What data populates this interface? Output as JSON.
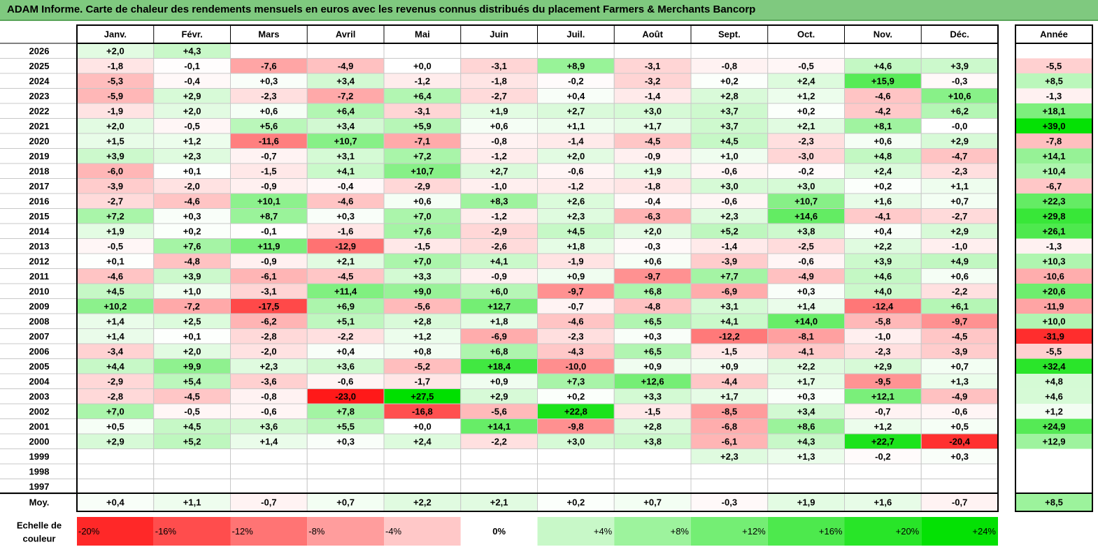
{
  "title": "ADAM Informe. Carte de chaleur des rendements mensuels en euros avec les revenus connus distribués du placement Farmers & Merchants Bancorp",
  "chart_data": {
    "type": "heatmap",
    "columns": [
      "Janv.",
      "Févr.",
      "Mars",
      "Avril",
      "Mai",
      "Juin",
      "Juil.",
      "Août",
      "Sept.",
      "Oct.",
      "Nov.",
      "Déc."
    ],
    "year_header": "Année",
    "rows": [
      {
        "year": "2026",
        "values": [
          2.0,
          4.3,
          null,
          null,
          null,
          null,
          null,
          null,
          null,
          null,
          null,
          null
        ],
        "annual": null
      },
      {
        "year": "2025",
        "values": [
          -1.8,
          -0.1,
          -7.6,
          -4.9,
          0.0,
          -3.1,
          8.9,
          -3.1,
          -0.8,
          -0.5,
          4.6,
          3.9
        ],
        "annual": -5.5
      },
      {
        "year": "2024",
        "values": [
          -5.3,
          -0.4,
          0.3,
          3.4,
          -1.2,
          -1.8,
          -0.2,
          -3.2,
          0.2,
          2.4,
          15.9,
          -0.3
        ],
        "annual": 8.5
      },
      {
        "year": "2023",
        "values": [
          -5.9,
          2.9,
          -2.3,
          -7.2,
          6.4,
          -2.7,
          0.4,
          -1.4,
          2.8,
          1.2,
          -4.6,
          10.6
        ],
        "annual": -1.3
      },
      {
        "year": "2022",
        "values": [
          -1.9,
          2.0,
          0.6,
          6.4,
          -3.1,
          1.9,
          2.7,
          3.0,
          3.7,
          0.2,
          -4.2,
          6.2
        ],
        "annual": 18.1
      },
      {
        "year": "2021",
        "values": [
          2.0,
          -0.5,
          5.6,
          3.4,
          5.9,
          0.6,
          1.1,
          1.7,
          3.7,
          2.1,
          8.1,
          -0.0
        ],
        "annual": 39.0
      },
      {
        "year": "2020",
        "values": [
          1.5,
          1.2,
          -11.6,
          10.7,
          -7.1,
          -0.8,
          -1.4,
          -4.5,
          4.5,
          -2.3,
          0.6,
          2.9
        ],
        "annual": -7.8
      },
      {
        "year": "2019",
        "values": [
          3.9,
          2.3,
          -0.7,
          3.1,
          7.2,
          -1.2,
          2.0,
          -0.9,
          1.0,
          -3.0,
          4.8,
          -4.7
        ],
        "annual": 14.1
      },
      {
        "year": "2018",
        "values": [
          -6.0,
          0.1,
          -1.5,
          4.1,
          10.7,
          2.7,
          -0.6,
          1.9,
          -0.6,
          -0.2,
          2.4,
          -2.3
        ],
        "annual": 10.4
      },
      {
        "year": "2017",
        "values": [
          -3.9,
          -2.0,
          -0.9,
          -0.4,
          -2.9,
          -1.0,
          -1.2,
          -1.8,
          3.0,
          3.0,
          0.2,
          1.1
        ],
        "annual": -6.7
      },
      {
        "year": "2016",
        "values": [
          -2.7,
          -4.6,
          10.1,
          -4.6,
          0.6,
          8.3,
          2.6,
          -0.4,
          -0.6,
          10.7,
          1.6,
          0.7
        ],
        "annual": 22.3
      },
      {
        "year": "2015",
        "values": [
          7.2,
          0.3,
          8.7,
          0.3,
          7.0,
          -1.2,
          2.3,
          -6.3,
          2.3,
          14.6,
          -4.1,
          -2.7
        ],
        "annual": 29.8
      },
      {
        "year": "2014",
        "values": [
          1.9,
          0.2,
          -0.1,
          -1.6,
          7.6,
          -2.9,
          4.5,
          2.0,
          5.2,
          3.8,
          0.4,
          2.9
        ],
        "annual": 26.1
      },
      {
        "year": "2013",
        "values": [
          -0.5,
          7.6,
          11.9,
          -12.9,
          -1.5,
          -2.6,
          1.8,
          -0.3,
          -1.4,
          -2.5,
          2.2,
          -1.0
        ],
        "annual": -1.3
      },
      {
        "year": "2012",
        "values": [
          0.1,
          -4.8,
          -0.9,
          2.1,
          7.0,
          4.1,
          -1.9,
          0.6,
          -3.9,
          -0.6,
          3.9,
          4.9
        ],
        "annual": 10.3
      },
      {
        "year": "2011",
        "values": [
          -4.6,
          3.9,
          -6.1,
          -4.5,
          3.3,
          -0.9,
          0.9,
          -9.7,
          7.7,
          -4.9,
          4.6,
          0.6
        ],
        "annual": -10.6
      },
      {
        "year": "2010",
        "values": [
          4.5,
          1.0,
          -3.1,
          11.4,
          9.0,
          6.0,
          -9.7,
          6.8,
          -6.9,
          0.3,
          4.0,
          -2.2
        ],
        "annual": 20.6
      },
      {
        "year": "2009",
        "values": [
          10.2,
          -7.2,
          -17.5,
          6.9,
          -5.6,
          12.7,
          -0.7,
          -4.8,
          3.1,
          1.4,
          -12.4,
          6.1
        ],
        "annual": -11.9
      },
      {
        "year": "2008",
        "values": [
          1.4,
          2.5,
          -6.2,
          5.1,
          2.8,
          1.8,
          -4.6,
          6.5,
          4.1,
          14.0,
          -5.8,
          -9.7
        ],
        "annual": 10.0
      },
      {
        "year": "2007",
        "values": [
          1.4,
          0.1,
          -2.8,
          -2.2,
          1.2,
          -6.9,
          -2.3,
          0.3,
          -12.2,
          -8.1,
          -1.0,
          -4.5
        ],
        "annual": -31.9
      },
      {
        "year": "2006",
        "values": [
          -3.4,
          2.0,
          -2.0,
          0.4,
          0.8,
          6.8,
          -4.3,
          6.5,
          -1.5,
          -4.1,
          -2.3,
          -3.9
        ],
        "annual": -5.5
      },
      {
        "year": "2005",
        "values": [
          4.4,
          9.9,
          2.3,
          3.6,
          -5.2,
          18.4,
          -10.0,
          0.9,
          0.9,
          2.2,
          2.9,
          0.7
        ],
        "annual": 32.4
      },
      {
        "year": "2004",
        "values": [
          -2.9,
          5.4,
          -3.6,
          -0.6,
          -1.7,
          0.9,
          7.3,
          12.6,
          -4.4,
          1.7,
          -9.5,
          1.3
        ],
        "annual": 4.8
      },
      {
        "year": "2003",
        "values": [
          -2.8,
          -4.5,
          -0.8,
          -23.0,
          27.5,
          2.9,
          0.2,
          3.3,
          1.7,
          0.3,
          12.1,
          -4.9
        ],
        "annual": 4.6
      },
      {
        "year": "2002",
        "values": [
          7.0,
          -0.5,
          -0.6,
          7.8,
          -16.8,
          -5.6,
          22.8,
          -1.5,
          -8.5,
          3.4,
          -0.7,
          -0.6
        ],
        "annual": 1.2
      },
      {
        "year": "2001",
        "values": [
          0.5,
          4.5,
          3.6,
          5.5,
          0.0,
          14.1,
          -9.8,
          2.8,
          -6.8,
          8.6,
          1.2,
          0.5
        ],
        "annual": 24.9
      },
      {
        "year": "2000",
        "values": [
          2.9,
          5.2,
          1.4,
          0.3,
          2.4,
          -2.2,
          3.0,
          3.8,
          -6.1,
          4.3,
          22.7,
          -20.4
        ],
        "annual": 12.9
      },
      {
        "year": "1999",
        "values": [
          null,
          null,
          null,
          null,
          null,
          null,
          null,
          null,
          2.3,
          1.3,
          -0.2,
          0.3
        ],
        "annual": null
      },
      {
        "year": "1998",
        "values": [
          null,
          null,
          null,
          null,
          null,
          null,
          null,
          null,
          null,
          null,
          null,
          null
        ],
        "annual": null
      },
      {
        "year": "1997",
        "values": [
          null,
          null,
          null,
          null,
          null,
          null,
          null,
          null,
          null,
          null,
          null,
          null
        ],
        "annual": null
      }
    ],
    "average": {
      "label": "Moy.",
      "values": [
        0.4,
        1.1,
        -0.7,
        0.7,
        2.2,
        2.1,
        0.2,
        0.7,
        -0.3,
        1.9,
        1.6,
        -0.7
      ],
      "annual": 8.5
    },
    "scale": {
      "label_line1": "Echelle de",
      "label_line2": "couleur",
      "steps": [
        {
          "label": "-20%",
          "value": -20
        },
        {
          "label": "-16%",
          "value": -16
        },
        {
          "label": "-12%",
          "value": -12
        },
        {
          "label": "-8%",
          "value": -8
        },
        {
          "label": "-4%",
          "value": -4
        },
        {
          "label": "0%",
          "value": 0
        },
        {
          "label": "+4%",
          "value": 4
        },
        {
          "label": "+8%",
          "value": 8
        },
        {
          "label": "+12%",
          "value": 12
        },
        {
          "label": "+16%",
          "value": 16
        },
        {
          "label": "+20%",
          "value": 20
        },
        {
          "label": "+24%",
          "value": 24
        }
      ]
    },
    "colors": {
      "negative_max": "#ff0000",
      "positive_max": "#00e000",
      "neutral": "#ffffff",
      "title_bg": "#7fc97f",
      "grid": "#c8c8c8",
      "border": "#000000"
    }
  }
}
